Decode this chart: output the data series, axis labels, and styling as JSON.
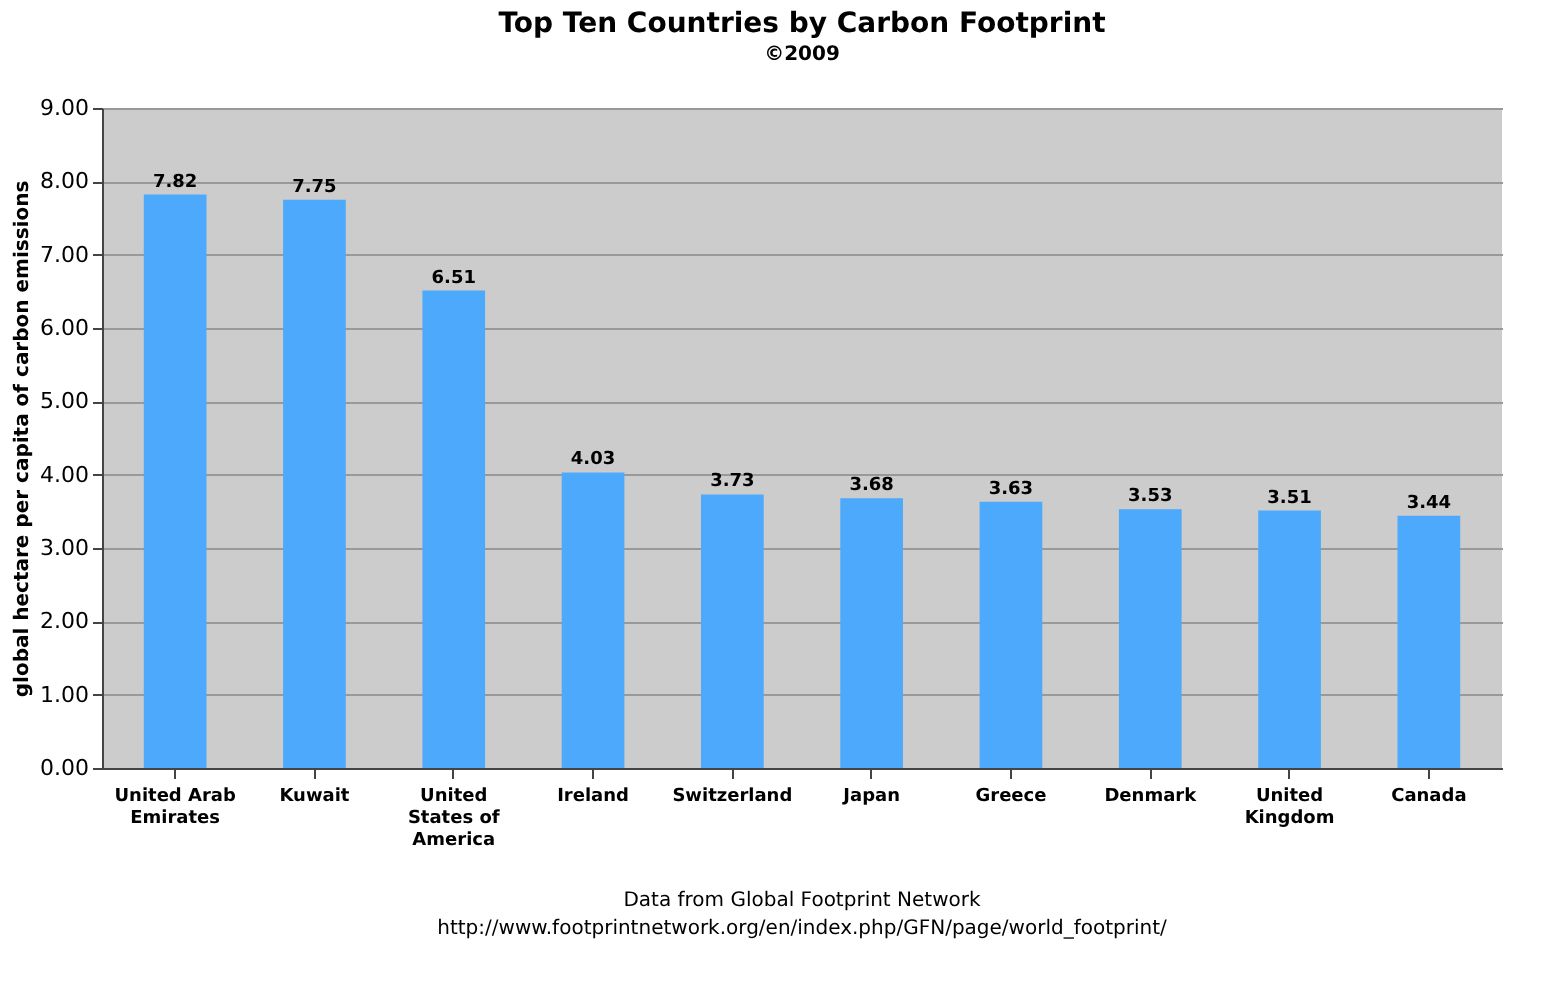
{
  "chart_data": {
    "type": "bar",
    "title": "Top Ten Countries by Carbon Footprint",
    "subtitle": "©2009",
    "ylabel": "global hectare per capita of carbon emissions",
    "categories": [
      "United Arab Emirates",
      "Kuwait",
      "United States of America",
      "Ireland",
      "Switzerland",
      "Japan",
      "Greece",
      "Denmark",
      "United Kingdom",
      "Canada"
    ],
    "values": [
      7.82,
      7.75,
      6.51,
      4.03,
      3.73,
      3.68,
      3.63,
      3.53,
      3.51,
      3.44
    ],
    "color": "#4da9fb",
    "ylim": [
      0,
      9
    ],
    "yticks": [
      {
        "value": 0,
        "label": "0.00"
      },
      {
        "value": 1,
        "label": "1.00"
      },
      {
        "value": 2,
        "label": "2.00"
      },
      {
        "value": 3,
        "label": "3.00"
      },
      {
        "value": 4,
        "label": "4.00"
      },
      {
        "value": 5,
        "label": "5.00"
      },
      {
        "value": 6,
        "label": "6.00"
      },
      {
        "value": 7,
        "label": "7.00"
      },
      {
        "value": 8,
        "label": "8.00"
      },
      {
        "value": 9,
        "label": "9.00"
      }
    ],
    "grid": "y",
    "data_labels": true,
    "annotations": [
      "Data from Global Footprint Network",
      "http://www.footprintnetwork.org/en/index.php/GFN/page/world_footprint/"
    ]
  }
}
